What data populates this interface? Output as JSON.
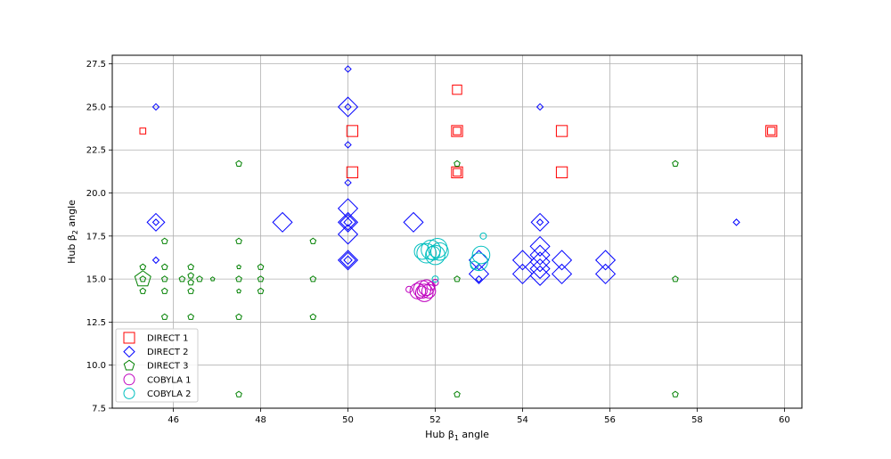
{
  "chart_data": {
    "type": "scatter",
    "title": "",
    "xlabel": "Hub β1 angle",
    "ylabel": "Hub β2 angle",
    "xlim": [
      44.6,
      60.4
    ],
    "ylim": [
      7.5,
      28.0
    ],
    "x_ticks": [
      46,
      48,
      50,
      52,
      54,
      56,
      58,
      60
    ],
    "x_tick_labels": [
      "46",
      "48",
      "50",
      "52",
      "54",
      "56",
      "58",
      "60"
    ],
    "y_ticks": [
      7.5,
      10.0,
      12.5,
      15.0,
      17.5,
      20.0,
      22.5,
      25.0,
      27.5
    ],
    "y_tick_labels": [
      "7.5",
      "10.0",
      "12.5",
      "15.0",
      "17.5",
      "20.0",
      "22.5",
      "25.0",
      "27.5"
    ],
    "grid": true,
    "legend_position": "lower-left",
    "series": [
      {
        "name": "DIRECT 1",
        "marker": "square",
        "color": "#ff0000",
        "points": [
          {
            "x": 45.3,
            "y": 23.6,
            "s": 2
          },
          {
            "x": 50.1,
            "y": 23.6,
            "s": 5
          },
          {
            "x": 50.1,
            "y": 21.2,
            "s": 5
          },
          {
            "x": 52.5,
            "y": 26.0,
            "s": 4
          },
          {
            "x": 52.5,
            "y": 23.6,
            "s": 5
          },
          {
            "x": 52.5,
            "y": 23.6,
            "s": 3
          },
          {
            "x": 52.5,
            "y": 21.2,
            "s": 5
          },
          {
            "x": 52.5,
            "y": 21.2,
            "s": 3
          },
          {
            "x": 54.9,
            "y": 23.6,
            "s": 5
          },
          {
            "x": 54.9,
            "y": 21.2,
            "s": 5
          },
          {
            "x": 59.7,
            "y": 23.6,
            "s": 5
          },
          {
            "x": 59.7,
            "y": 23.6,
            "s": 3
          }
        ]
      },
      {
        "name": "DIRECT 2",
        "marker": "diamond",
        "color": "#0000ff",
        "points": [
          {
            "x": 45.6,
            "y": 25.0,
            "s": 2
          },
          {
            "x": 45.6,
            "y": 18.3,
            "s": 8
          },
          {
            "x": 45.6,
            "y": 18.3,
            "s": 2
          },
          {
            "x": 45.6,
            "y": 16.1,
            "s": 2
          },
          {
            "x": 48.5,
            "y": 18.3,
            "s": 9
          },
          {
            "x": 50.0,
            "y": 27.2,
            "s": 2
          },
          {
            "x": 50.0,
            "y": 25.0,
            "s": 9
          },
          {
            "x": 50.0,
            "y": 25.0,
            "s": 2
          },
          {
            "x": 50.0,
            "y": 22.8,
            "s": 2
          },
          {
            "x": 50.0,
            "y": 20.6,
            "s": 2
          },
          {
            "x": 50.0,
            "y": 19.1,
            "s": 9
          },
          {
            "x": 50.0,
            "y": 18.3,
            "s": 9
          },
          {
            "x": 50.0,
            "y": 18.3,
            "s": 7
          },
          {
            "x": 50.0,
            "y": 18.3,
            "s": 3
          },
          {
            "x": 50.0,
            "y": 17.6,
            "s": 9
          },
          {
            "x": 50.0,
            "y": 16.1,
            "s": 9
          },
          {
            "x": 50.0,
            "y": 16.1,
            "s": 7
          },
          {
            "x": 50.0,
            "y": 16.1,
            "s": 3
          },
          {
            "x": 51.5,
            "y": 18.3,
            "s": 9
          },
          {
            "x": 53.0,
            "y": 16.1,
            "s": 9
          },
          {
            "x": 53.0,
            "y": 15.3,
            "s": 9
          },
          {
            "x": 53.0,
            "y": 15.0,
            "s": 2
          },
          {
            "x": 54.0,
            "y": 16.1,
            "s": 9
          },
          {
            "x": 54.0,
            "y": 15.3,
            "s": 9
          },
          {
            "x": 54.4,
            "y": 25.0,
            "s": 2
          },
          {
            "x": 54.4,
            "y": 18.3,
            "s": 8
          },
          {
            "x": 54.4,
            "y": 18.3,
            "s": 2
          },
          {
            "x": 54.4,
            "y": 16.9,
            "s": 9
          },
          {
            "x": 54.4,
            "y": 16.4,
            "s": 9
          },
          {
            "x": 54.4,
            "y": 16.0,
            "s": 9
          },
          {
            "x": 54.4,
            "y": 15.6,
            "s": 9
          },
          {
            "x": 54.4,
            "y": 15.2,
            "s": 9
          },
          {
            "x": 54.9,
            "y": 16.1,
            "s": 9
          },
          {
            "x": 54.9,
            "y": 15.3,
            "s": 9
          },
          {
            "x": 55.9,
            "y": 16.1,
            "s": 9
          },
          {
            "x": 55.9,
            "y": 15.3,
            "s": 9
          },
          {
            "x": 58.9,
            "y": 18.3,
            "s": 2
          }
        ]
      },
      {
        "name": "DIRECT 3",
        "marker": "pentagon",
        "color": "#008000",
        "points": [
          {
            "x": 45.3,
            "y": 15.0,
            "s": 8
          },
          {
            "x": 45.3,
            "y": 15.7,
            "s": 2
          },
          {
            "x": 45.3,
            "y": 14.3,
            "s": 2
          },
          {
            "x": 45.3,
            "y": 15.0,
            "s": 2
          },
          {
            "x": 45.8,
            "y": 17.2,
            "s": 2
          },
          {
            "x": 45.8,
            "y": 15.7,
            "s": 2
          },
          {
            "x": 45.8,
            "y": 15.0,
            "s": 2
          },
          {
            "x": 45.8,
            "y": 14.3,
            "s": 2
          },
          {
            "x": 45.8,
            "y": 12.8,
            "s": 2
          },
          {
            "x": 46.2,
            "y": 15.0,
            "s": 2
          },
          {
            "x": 46.4,
            "y": 15.7,
            "s": 2
          },
          {
            "x": 46.4,
            "y": 15.2,
            "s": 2
          },
          {
            "x": 46.4,
            "y": 14.8,
            "s": 2
          },
          {
            "x": 46.4,
            "y": 14.3,
            "s": 2
          },
          {
            "x": 46.4,
            "y": 12.8,
            "s": 2
          },
          {
            "x": 46.6,
            "y": 15.0,
            "s": 2
          },
          {
            "x": 46.9,
            "y": 15.0,
            "s": 1
          },
          {
            "x": 47.5,
            "y": 21.7,
            "s": 2
          },
          {
            "x": 47.5,
            "y": 17.2,
            "s": 2
          },
          {
            "x": 47.5,
            "y": 15.7,
            "s": 1
          },
          {
            "x": 47.5,
            "y": 15.0,
            "s": 2
          },
          {
            "x": 47.5,
            "y": 14.3,
            "s": 1
          },
          {
            "x": 47.5,
            "y": 12.8,
            "s": 2
          },
          {
            "x": 47.5,
            "y": 8.3,
            "s": 2
          },
          {
            "x": 48.0,
            "y": 15.7,
            "s": 2
          },
          {
            "x": 48.0,
            "y": 15.0,
            "s": 2
          },
          {
            "x": 48.0,
            "y": 14.3,
            "s": 2
          },
          {
            "x": 49.2,
            "y": 17.2,
            "s": 2
          },
          {
            "x": 49.2,
            "y": 15.0,
            "s": 2
          },
          {
            "x": 49.2,
            "y": 12.8,
            "s": 2
          },
          {
            "x": 52.5,
            "y": 21.7,
            "s": 2
          },
          {
            "x": 52.5,
            "y": 15.0,
            "s": 2
          },
          {
            "x": 52.5,
            "y": 8.3,
            "s": 2
          },
          {
            "x": 57.5,
            "y": 21.7,
            "s": 2
          },
          {
            "x": 57.5,
            "y": 15.0,
            "s": 2
          },
          {
            "x": 57.5,
            "y": 8.3,
            "s": 2
          }
        ]
      },
      {
        "name": "COBYLA 1",
        "marker": "circle",
        "color": "#bf00bf",
        "points": [
          {
            "x": 51.4,
            "y": 14.4,
            "s": 2
          },
          {
            "x": 51.6,
            "y": 14.3,
            "s": 7
          },
          {
            "x": 51.7,
            "y": 14.4,
            "s": 8
          },
          {
            "x": 51.75,
            "y": 14.2,
            "s": 8
          },
          {
            "x": 51.8,
            "y": 14.5,
            "s": 7
          },
          {
            "x": 51.7,
            "y": 14.3,
            "s": 4
          },
          {
            "x": 51.9,
            "y": 14.6,
            "s": 3
          },
          {
            "x": 52.0,
            "y": 14.8,
            "s": 2
          },
          {
            "x": 51.85,
            "y": 14.3,
            "s": 6
          }
        ]
      },
      {
        "name": "COBYLA 2",
        "marker": "circle",
        "color": "#00bfbf",
        "points": [
          {
            "x": 51.8,
            "y": 16.5,
            "s": 9
          },
          {
            "x": 51.9,
            "y": 16.7,
            "s": 9
          },
          {
            "x": 52.0,
            "y": 16.4,
            "s": 9
          },
          {
            "x": 52.05,
            "y": 16.8,
            "s": 9
          },
          {
            "x": 52.1,
            "y": 16.6,
            "s": 8
          },
          {
            "x": 51.7,
            "y": 16.6,
            "s": 7
          },
          {
            "x": 51.95,
            "y": 16.5,
            "s": 6
          },
          {
            "x": 52.0,
            "y": 15.0,
            "s": 2
          },
          {
            "x": 52.9,
            "y": 15.8,
            "s": 3
          },
          {
            "x": 53.0,
            "y": 16.0,
            "s": 8
          },
          {
            "x": 53.05,
            "y": 16.4,
            "s": 8
          },
          {
            "x": 53.1,
            "y": 17.5,
            "s": 2
          }
        ]
      }
    ]
  }
}
